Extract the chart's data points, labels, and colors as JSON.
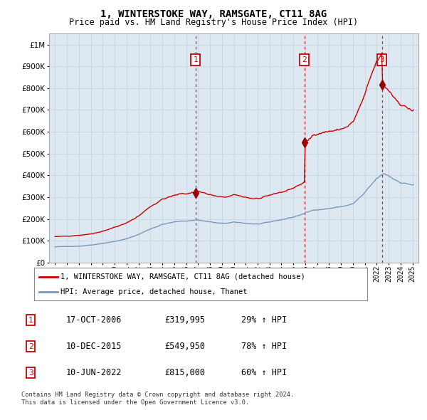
{
  "title": "1, WINTERSTOKE WAY, RAMSGATE, CT11 8AG",
  "subtitle": "Price paid vs. HM Land Registry's House Price Index (HPI)",
  "hpi_label": "HPI: Average price, detached house, Thanet",
  "property_label": "1, WINTERSTOKE WAY, RAMSGATE, CT11 8AG (detached house)",
  "transactions": [
    {
      "id": 1,
      "date": "17-OCT-2006",
      "price": 319995,
      "pct": "29%",
      "year": 2006.79
    },
    {
      "id": 2,
      "date": "10-DEC-2015",
      "price": 549950,
      "pct": "78%",
      "year": 2015.94
    },
    {
      "id": 3,
      "date": "10-JUN-2022",
      "price": 815000,
      "pct": "60%",
      "year": 2022.44
    }
  ],
  "footnote1": "Contains HM Land Registry data © Crown copyright and database right 2024.",
  "footnote2": "This data is licensed under the Open Government Licence v3.0.",
  "ylim": [
    0,
    1050000
  ],
  "xlim_start": 1994.5,
  "xlim_end": 2025.5,
  "property_color": "#cc0000",
  "hpi_color": "#7799bb",
  "background_color": "#dde8f0",
  "plot_bg": "#ffffff",
  "grid_color": "#c8d8e8",
  "vline_color": "#cc0000",
  "box_color": "#cc0000",
  "marker_color": "#990000"
}
